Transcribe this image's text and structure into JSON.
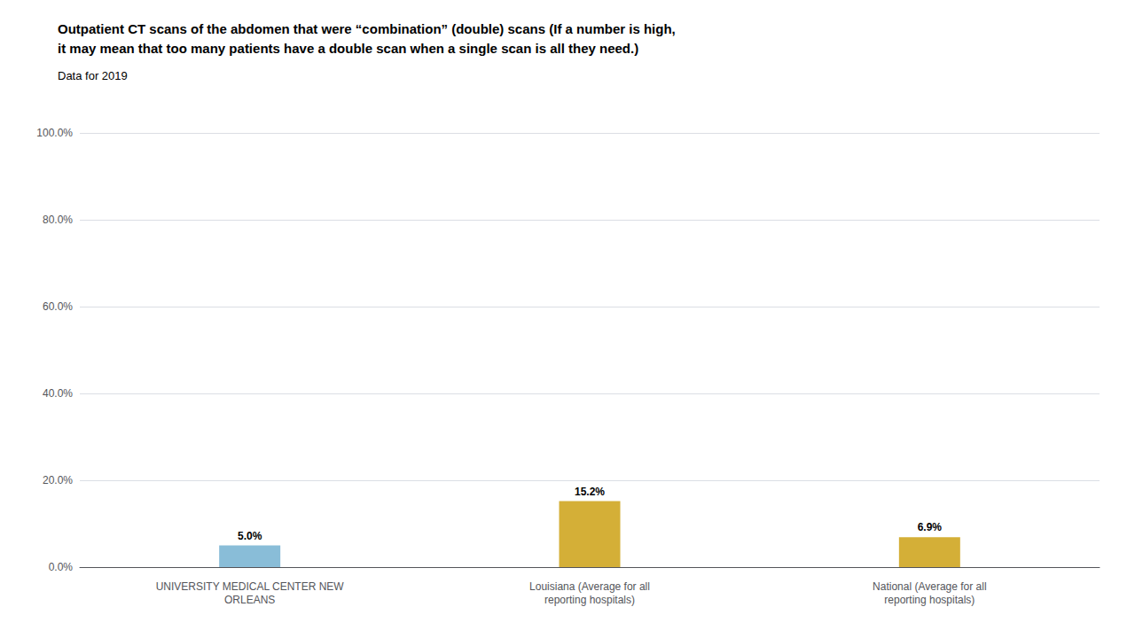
{
  "chart_data": {
    "type": "bar",
    "title": "Outpatient CT scans of the abdomen that were “combination” (double) scans (If a number is high,\nit may mean that too many patients have a double scan when a single scan is all they need.)",
    "subtitle": "Data for 2019",
    "categories": [
      "UNIVERSITY MEDICAL CENTER NEW\nORLEANS",
      "Louisiana (Average for all\nreporting hospitals)",
      "National (Average for all\nreporting hospitals)"
    ],
    "values": [
      5.0,
      15.2,
      6.9
    ],
    "value_labels": [
      "5.0%",
      "15.2%",
      "6.9%"
    ],
    "colors": [
      "#89bdd8",
      "#d4af37",
      "#d4af37"
    ],
    "ylim": [
      0,
      100
    ],
    "yticks": [
      {
        "value": 0,
        "label": "0.0%"
      },
      {
        "value": 20,
        "label": "20.0%"
      },
      {
        "value": 40,
        "label": "40.0%"
      },
      {
        "value": 60,
        "label": "60.0%"
      },
      {
        "value": 80,
        "label": "80.0%"
      },
      {
        "value": 100,
        "label": "100.0%"
      }
    ],
    "grid": true,
    "data_labels": true
  }
}
